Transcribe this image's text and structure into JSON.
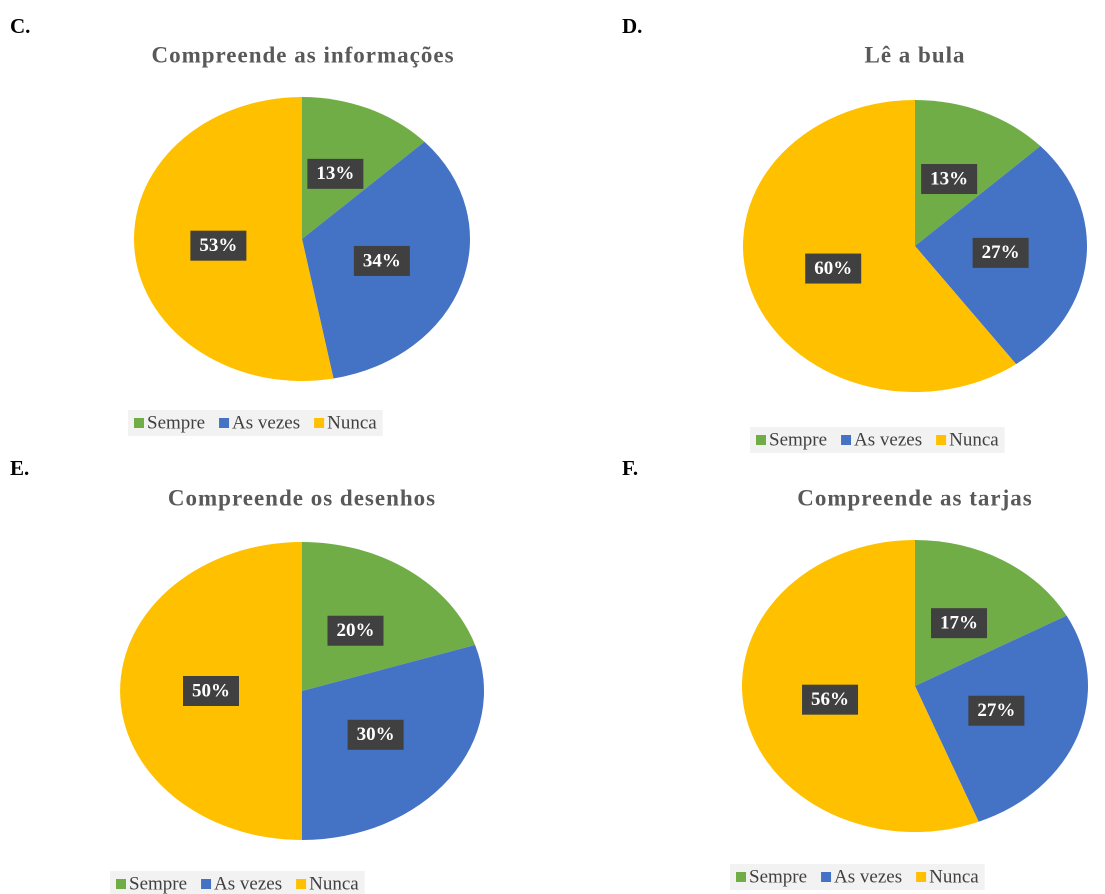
{
  "chart_data": [
    {
      "type": "pie",
      "panel": "C.",
      "title": "Compreende as informações",
      "categories": [
        "Sempre",
        "As vezes",
        "Nunca"
      ],
      "values": [
        13,
        34,
        53
      ],
      "value_labels": [
        "13%",
        "34%",
        "53%"
      ],
      "colors": [
        "#70ad47",
        "#4472c4",
        "#ffc000"
      ]
    },
    {
      "type": "pie",
      "panel": "D.",
      "title": "Lê a bula",
      "categories": [
        "Sempre",
        "As vezes",
        "Nunca"
      ],
      "values": [
        13,
        27,
        60
      ],
      "value_labels": [
        "13%",
        "27%",
        "60%"
      ],
      "colors": [
        "#70ad47",
        "#4472c4",
        "#ffc000"
      ]
    },
    {
      "type": "pie",
      "panel": "E.",
      "title": "Compreende os desenhos",
      "categories": [
        "Sempre",
        "As vezes",
        "Nunca"
      ],
      "values": [
        20,
        30,
        50
      ],
      "value_labels": [
        "20%",
        "30%",
        "50%"
      ],
      "colors": [
        "#70ad47",
        "#4472c4",
        "#ffc000"
      ]
    },
    {
      "type": "pie",
      "panel": "F.",
      "title": "Compreende as tarjas",
      "categories": [
        "Sempre",
        "As vezes",
        "Nunca"
      ],
      "values": [
        17,
        27,
        56
      ],
      "value_labels": [
        "17%",
        "27%",
        "56%"
      ],
      "colors": [
        "#70ad47",
        "#4472c4",
        "#ffc000"
      ]
    }
  ]
}
